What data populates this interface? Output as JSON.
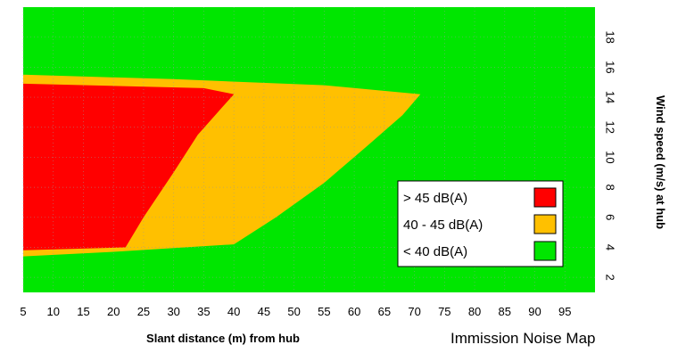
{
  "chart_data": {
    "type": "heatmap",
    "title": "Immission Noise Map",
    "xlabel": "Slant distance (m) from hub",
    "ylabel": "Wind speed (m/s) at hub",
    "xlim": [
      5,
      100
    ],
    "ylim": [
      1,
      20
    ],
    "x_ticks": [
      "5",
      "10",
      "15",
      "20",
      "25",
      "30",
      "35",
      "40",
      "45",
      "50",
      "55",
      "60",
      "65",
      "70",
      "75",
      "80",
      "85",
      "90",
      "95"
    ],
    "y_ticks": [
      "2",
      "4",
      "6",
      "8",
      "10",
      "12",
      "14",
      "16",
      "18"
    ],
    "grid": true,
    "legend_position": "right",
    "legend": [
      {
        "label": "> 45 dB(A)",
        "color": "#ff0000"
      },
      {
        "label": "40 - 45 dB(A)",
        "color": "#ffc000"
      },
      {
        "label": "< 40 dB(A)",
        "color": "#00e600"
      }
    ],
    "regions": [
      {
        "name": "> 45 dB(A)",
        "color": "#ff0000",
        "boundary": [
          [
            5,
            3.8
          ],
          [
            22,
            4.0
          ],
          [
            25,
            6
          ],
          [
            30,
            9
          ],
          [
            34,
            11.5
          ],
          [
            38,
            13.3
          ],
          [
            40,
            14.2
          ],
          [
            35,
            14.6
          ],
          [
            5,
            14.9
          ]
        ]
      },
      {
        "name": "40 - 45 dB(A)",
        "color": "#ffc000",
        "boundary": [
          [
            5,
            3.4
          ],
          [
            20,
            3.7
          ],
          [
            40,
            4.2
          ],
          [
            47,
            6
          ],
          [
            55,
            8.3
          ],
          [
            62,
            10.7
          ],
          [
            68,
            12.8
          ],
          [
            71,
            14.2
          ],
          [
            55,
            14.8
          ],
          [
            30,
            15.2
          ],
          [
            5,
            15.5
          ]
        ]
      }
    ]
  }
}
